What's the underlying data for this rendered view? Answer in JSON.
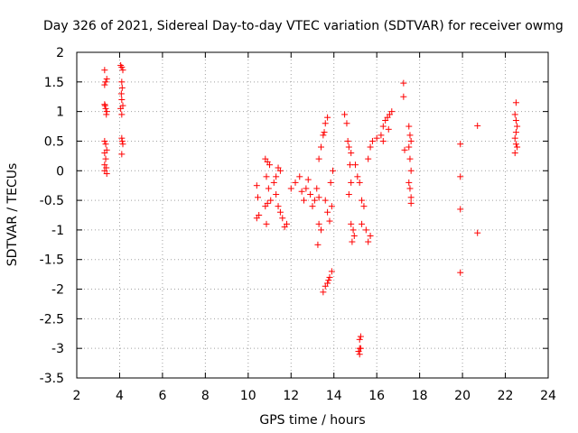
{
  "chart_data": {
    "type": "scatter",
    "title": "Day 326 of 2021, Sidereal Day-to-day VTEC variation (SDTVAR) for receiver owmg",
    "xlabel": "GPS time / hours",
    "ylabel": "SDTVAR / TECUs",
    "xlim": [
      2,
      24
    ],
    "ylim": [
      -3.5,
      2
    ],
    "xticks": [
      "2",
      "4",
      "6",
      "8",
      "10",
      "12",
      "14",
      "16",
      "18",
      "20",
      "22",
      "24"
    ],
    "yticks": [
      "2",
      "1.5",
      "1",
      "0.5",
      "0",
      "-0.5",
      "-1",
      "-1.5",
      "-2",
      "-2.5",
      "-3",
      "-3.5"
    ],
    "grid": true,
    "marker": "+",
    "color": "#ff0000",
    "series": [
      {
        "name": "SDTVAR",
        "points": [
          [
            3.3,
            1.7
          ],
          [
            3.35,
            1.5
          ],
          [
            3.3,
            1.45
          ],
          [
            3.4,
            1.55
          ],
          [
            3.32,
            1.1
          ],
          [
            3.35,
            1.05
          ],
          [
            3.4,
            1.0
          ],
          [
            3.3,
            1.12
          ],
          [
            3.38,
            0.95
          ],
          [
            3.3,
            0.5
          ],
          [
            3.35,
            0.45
          ],
          [
            3.4,
            0.35
          ],
          [
            3.3,
            0.3
          ],
          [
            3.35,
            0.2
          ],
          [
            3.3,
            0.1
          ],
          [
            3.38,
            0.05
          ],
          [
            3.3,
            0.0
          ],
          [
            3.4,
            -0.05
          ],
          [
            4.05,
            1.78
          ],
          [
            4.1,
            1.75
          ],
          [
            4.15,
            1.7
          ],
          [
            4.1,
            1.5
          ],
          [
            4.12,
            1.4
          ],
          [
            4.08,
            1.3
          ],
          [
            4.1,
            1.2
          ],
          [
            4.15,
            1.1
          ],
          [
            4.05,
            1.05
          ],
          [
            4.1,
            0.95
          ],
          [
            4.1,
            0.55
          ],
          [
            4.12,
            0.5
          ],
          [
            4.15,
            0.45
          ],
          [
            4.1,
            0.28
          ],
          [
            10.4,
            -0.25
          ],
          [
            10.45,
            -0.45
          ],
          [
            10.4,
            -0.8
          ],
          [
            10.5,
            -0.75
          ],
          [
            10.8,
            0.2
          ],
          [
            10.9,
            0.15
          ],
          [
            11.0,
            0.1
          ],
          [
            10.85,
            -0.1
          ],
          [
            10.95,
            -0.3
          ],
          [
            11.05,
            -0.5
          ],
          [
            10.9,
            -0.55
          ],
          [
            10.8,
            -0.6
          ],
          [
            10.85,
            -0.9
          ],
          [
            11.2,
            -0.2
          ],
          [
            11.3,
            -0.1
          ],
          [
            11.4,
            0.05
          ],
          [
            11.5,
            0.0
          ],
          [
            11.3,
            -0.4
          ],
          [
            11.4,
            -0.6
          ],
          [
            11.5,
            -0.7
          ],
          [
            11.6,
            -0.8
          ],
          [
            11.7,
            -0.95
          ],
          [
            11.8,
            -0.9
          ],
          [
            12.0,
            -0.3
          ],
          [
            12.2,
            -0.2
          ],
          [
            12.4,
            -0.1
          ],
          [
            12.5,
            -0.35
          ],
          [
            12.6,
            -0.5
          ],
          [
            12.7,
            -0.3
          ],
          [
            12.8,
            -0.15
          ],
          [
            12.9,
            -0.4
          ],
          [
            13.0,
            -0.6
          ],
          [
            13.1,
            -0.5
          ],
          [
            13.2,
            -0.3
          ],
          [
            13.3,
            -0.45
          ],
          [
            13.3,
            -0.9
          ],
          [
            13.4,
            -1.0
          ],
          [
            13.25,
            -1.25
          ],
          [
            13.3,
            0.2
          ],
          [
            13.4,
            0.4
          ],
          [
            13.5,
            0.6
          ],
          [
            13.6,
            0.8
          ],
          [
            13.7,
            0.9
          ],
          [
            13.55,
            0.65
          ],
          [
            13.6,
            -0.5
          ],
          [
            13.7,
            -0.7
          ],
          [
            13.8,
            -0.85
          ],
          [
            13.9,
            -0.6
          ],
          [
            13.85,
            -0.2
          ],
          [
            13.95,
            0.0
          ],
          [
            13.5,
            -2.05
          ],
          [
            13.6,
            -1.95
          ],
          [
            13.7,
            -1.9
          ],
          [
            13.8,
            -1.8
          ],
          [
            13.9,
            -1.7
          ],
          [
            13.75,
            -1.85
          ],
          [
            14.5,
            0.95
          ],
          [
            14.6,
            0.8
          ],
          [
            14.65,
            0.5
          ],
          [
            14.7,
            0.4
          ],
          [
            14.8,
            0.3
          ],
          [
            14.75,
            0.1
          ],
          [
            14.8,
            -0.2
          ],
          [
            14.7,
            -0.4
          ],
          [
            14.8,
            -0.9
          ],
          [
            14.9,
            -1.0
          ],
          [
            14.95,
            -1.1
          ],
          [
            14.85,
            -1.2
          ],
          [
            15.0,
            0.1
          ],
          [
            15.1,
            -0.1
          ],
          [
            15.2,
            -0.2
          ],
          [
            15.3,
            -0.5
          ],
          [
            15.4,
            -0.6
          ],
          [
            15.3,
            -0.9
          ],
          [
            15.5,
            -1.0
          ],
          [
            15.6,
            -1.2
          ],
          [
            15.7,
            -1.1
          ],
          [
            15.2,
            -2.85
          ],
          [
            15.25,
            -2.8
          ],
          [
            15.2,
            -3.0
          ],
          [
            15.15,
            -3.05
          ],
          [
            15.2,
            -3.1
          ],
          [
            15.25,
            -3.0
          ],
          [
            15.6,
            0.2
          ],
          [
            15.7,
            0.4
          ],
          [
            15.8,
            0.5
          ],
          [
            16.0,
            0.55
          ],
          [
            16.2,
            0.6
          ],
          [
            16.3,
            0.75
          ],
          [
            16.4,
            0.85
          ],
          [
            16.5,
            0.9
          ],
          [
            16.6,
            0.95
          ],
          [
            16.7,
            1.0
          ],
          [
            16.55,
            0.7
          ],
          [
            16.3,
            0.5
          ],
          [
            17.25,
            1.48
          ],
          [
            17.25,
            1.25
          ],
          [
            17.3,
            0.35
          ],
          [
            17.5,
            0.75
          ],
          [
            17.55,
            0.6
          ],
          [
            17.6,
            0.5
          ],
          [
            17.5,
            0.4
          ],
          [
            17.55,
            0.2
          ],
          [
            17.6,
            0.0
          ],
          [
            17.5,
            -0.2
          ],
          [
            17.55,
            -0.3
          ],
          [
            17.6,
            -0.45
          ],
          [
            17.6,
            -0.55
          ],
          [
            19.9,
            0.45
          ],
          [
            19.9,
            -0.1
          ],
          [
            19.9,
            -0.65
          ],
          [
            19.9,
            -1.72
          ],
          [
            20.7,
            0.76
          ],
          [
            20.7,
            -1.05
          ],
          [
            22.5,
            1.15
          ],
          [
            22.45,
            0.95
          ],
          [
            22.5,
            0.85
          ],
          [
            22.55,
            0.75
          ],
          [
            22.5,
            0.65
          ],
          [
            22.45,
            0.55
          ],
          [
            22.5,
            0.45
          ],
          [
            22.55,
            0.4
          ],
          [
            22.45,
            0.3
          ]
        ]
      }
    ]
  }
}
